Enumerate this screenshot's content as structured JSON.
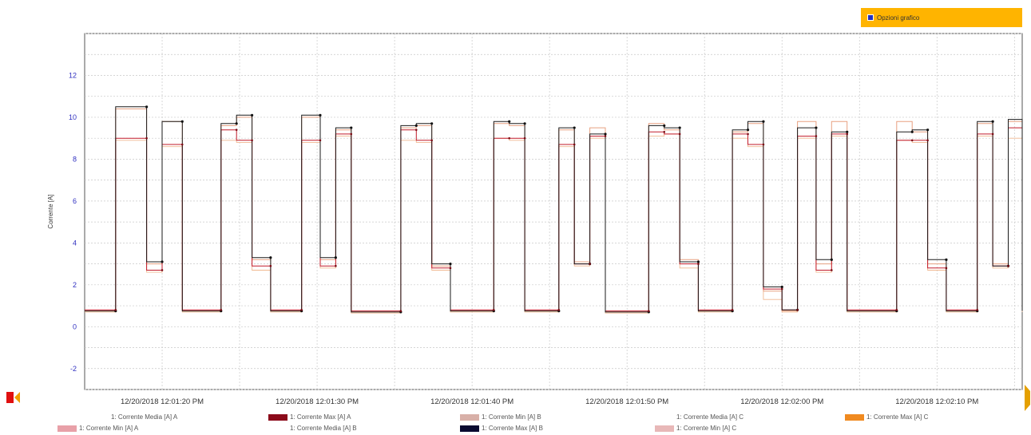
{
  "options_button": {
    "label": "Opzioni grafico",
    "icon": "options-icon"
  },
  "nav": {
    "left_icon": "previous-icon",
    "right_icon": "next-icon"
  },
  "chart_data": {
    "type": "line",
    "ylabel": "Corrente [A]",
    "xlabel": "",
    "title": "",
    "ylim": [
      -3,
      14
    ],
    "yticks": [
      -2,
      0,
      2,
      4,
      6,
      8,
      10,
      12
    ],
    "x_tick_labels": [
      "12/20/2018 12:01:20 PM",
      "12/20/2018 12:01:30 PM",
      "12/20/2018 12:01:40 PM",
      "12/20/2018 12:01:50 PM",
      "12/20/2018 12:02:00 PM",
      "12/20/2018 12:02:10 PM"
    ],
    "x_tick_seconds": [
      0,
      10,
      20,
      30,
      40,
      50
    ],
    "xlim_seconds": [
      -5,
      55.5
    ],
    "grid": true,
    "step_segments": [
      {
        "t": [
          -5.0,
          -3.0
        ],
        "v": [
          0.75,
          0.8,
          0.75,
          0.7
        ]
      },
      {
        "t": [
          -3.0,
          -1.0
        ],
        "v": [
          10.5,
          9.0,
          10.4,
          8.9
        ]
      },
      {
        "t": [
          -1.0,
          0.0
        ],
        "v": [
          3.1,
          2.7,
          3.0,
          2.6
        ]
      },
      {
        "t": [
          0.0,
          1.3
        ],
        "v": [
          9.8,
          8.7,
          9.8,
          8.6
        ]
      },
      {
        "t": [
          1.3,
          3.8
        ],
        "v": [
          0.75,
          0.8,
          0.75,
          0.7
        ]
      },
      {
        "t": [
          3.8,
          4.8
        ],
        "v": [
          9.7,
          9.4,
          9.6,
          8.9
        ]
      },
      {
        "t": [
          4.8,
          5.8
        ],
        "v": [
          10.1,
          8.9,
          10.0,
          8.8
        ]
      },
      {
        "t": [
          5.8,
          7.0
        ],
        "v": [
          3.3,
          2.9,
          3.2,
          2.7
        ]
      },
      {
        "t": [
          7.0,
          9.0
        ],
        "v": [
          0.75,
          0.8,
          0.75,
          0.7
        ]
      },
      {
        "t": [
          9.0,
          10.2
        ],
        "v": [
          10.1,
          8.9,
          10.0,
          8.8
        ]
      },
      {
        "t": [
          10.2,
          11.2
        ],
        "v": [
          3.3,
          2.9,
          3.2,
          2.8
        ]
      },
      {
        "t": [
          11.2,
          12.2
        ],
        "v": [
          9.5,
          9.2,
          9.4,
          9.1
        ]
      },
      {
        "t": [
          12.2,
          15.4
        ],
        "v": [
          0.7,
          0.75,
          0.7,
          0.65
        ]
      },
      {
        "t": [
          15.4,
          16.4
        ],
        "v": [
          9.6,
          9.4,
          9.5,
          8.9
        ]
      },
      {
        "t": [
          16.4,
          17.4
        ],
        "v": [
          9.7,
          8.9,
          9.6,
          8.8
        ]
      },
      {
        "t": [
          17.4,
          18.6
        ],
        "v": [
          3.0,
          2.8,
          2.9,
          2.7
        ]
      },
      {
        "t": [
          18.6,
          21.4
        ],
        "v": [
          0.75,
          0.8,
          0.75,
          0.7
        ]
      },
      {
        "t": [
          21.4,
          22.4
        ],
        "v": [
          9.8,
          9.0,
          9.7,
          9.0
        ]
      },
      {
        "t": [
          22.4,
          23.4
        ],
        "v": [
          9.7,
          9.0,
          9.6,
          8.9
        ]
      },
      {
        "t": [
          23.4,
          25.6
        ],
        "v": [
          0.75,
          0.8,
          0.75,
          0.7
        ]
      },
      {
        "t": [
          25.6,
          26.6
        ],
        "v": [
          9.5,
          8.7,
          9.4,
          8.6
        ]
      },
      {
        "t": [
          26.6,
          27.6
        ],
        "v": [
          3.0,
          3.0,
          3.1,
          2.9
        ]
      },
      {
        "t": [
          27.6,
          28.6
        ],
        "v": [
          9.2,
          9.1,
          9.5,
          9.0
        ]
      },
      {
        "t": [
          28.6,
          31.4
        ],
        "v": [
          0.7,
          0.75,
          0.7,
          0.65
        ]
      },
      {
        "t": [
          31.4,
          32.4
        ],
        "v": [
          9.6,
          9.3,
          9.7,
          9.1
        ]
      },
      {
        "t": [
          32.4,
          33.4
        ],
        "v": [
          9.5,
          9.2,
          9.4,
          9.2
        ]
      },
      {
        "t": [
          33.4,
          34.6
        ],
        "v": [
          3.1,
          3.0,
          3.2,
          2.8
        ]
      },
      {
        "t": [
          34.6,
          36.8
        ],
        "v": [
          0.75,
          0.8,
          0.75,
          0.7
        ]
      },
      {
        "t": [
          36.8,
          37.8
        ],
        "v": [
          9.4,
          9.2,
          9.3,
          9.0
        ]
      },
      {
        "t": [
          37.8,
          38.8
        ],
        "v": [
          9.8,
          8.7,
          9.7,
          8.6
        ]
      },
      {
        "t": [
          38.8,
          40.0
        ],
        "v": [
          1.9,
          1.8,
          1.7,
          1.3
        ]
      },
      {
        "t": [
          40.0,
          41.0
        ],
        "v": [
          0.8,
          0.8,
          0.75,
          0.7
        ]
      },
      {
        "t": [
          41.0,
          42.2
        ],
        "v": [
          9.5,
          9.1,
          9.8,
          9.0
        ]
      },
      {
        "t": [
          42.2,
          43.2
        ],
        "v": [
          3.2,
          2.7,
          3.0,
          2.6
        ]
      },
      {
        "t": [
          43.2,
          44.2
        ],
        "v": [
          9.3,
          9.2,
          9.8,
          9.1
        ]
      },
      {
        "t": [
          44.2,
          47.4
        ],
        "v": [
          0.75,
          0.8,
          0.75,
          0.7
        ]
      },
      {
        "t": [
          47.4,
          48.4
        ],
        "v": [
          9.3,
          8.9,
          9.8,
          8.9
        ]
      },
      {
        "t": [
          48.4,
          49.4
        ],
        "v": [
          9.4,
          8.9,
          9.3,
          8.8
        ]
      },
      {
        "t": [
          49.4,
          50.6
        ],
        "v": [
          3.2,
          2.8,
          3.0,
          2.7
        ]
      },
      {
        "t": [
          50.6,
          52.6
        ],
        "v": [
          0.75,
          0.8,
          0.75,
          0.7
        ]
      },
      {
        "t": [
          52.6,
          53.6
        ],
        "v": [
          9.8,
          9.2,
          9.7,
          9.1
        ]
      },
      {
        "t": [
          53.6,
          54.6
        ],
        "v": [
          2.9,
          2.9,
          3.0,
          2.8
        ]
      },
      {
        "t": [
          54.6,
          55.5
        ],
        "v": [
          9.9,
          9.5,
          9.8,
          9.0
        ]
      },
      {
        "t": [
          55.5,
          55.5
        ],
        "v": [
          0.75,
          0.8,
          0.75,
          0.7
        ]
      }
    ],
    "series": [
      {
        "name": "1: Corrente Media [A] A",
        "color": "#ffffff"
      },
      {
        "name": "1: Corrente Max [A] A",
        "color": "#8b0a1a"
      },
      {
        "name": "1: Corrente Min [A] B",
        "color": "#d8b0a8"
      },
      {
        "name": "1: Corrente Media [A] C",
        "color": "#ffffff"
      },
      {
        "name": "1: Corrente Max [A] C",
        "color": "#f08a20"
      },
      {
        "name": "1: Corrente Min [A] A",
        "color": "#e8a0a8"
      },
      {
        "name": "1: Corrente Media [A] B",
        "color": "#ffffff"
      },
      {
        "name": "1: Corrente Max [A] B",
        "color": "#0a0a30"
      },
      {
        "name": "1: Corrente Min [A] C",
        "color": "#e8b8b8"
      }
    ],
    "plot_series_colors": [
      "#1a1a1a",
      "#c21a2a",
      "#e8a080",
      "#f0b890"
    ],
    "legend_position": "bottom"
  }
}
